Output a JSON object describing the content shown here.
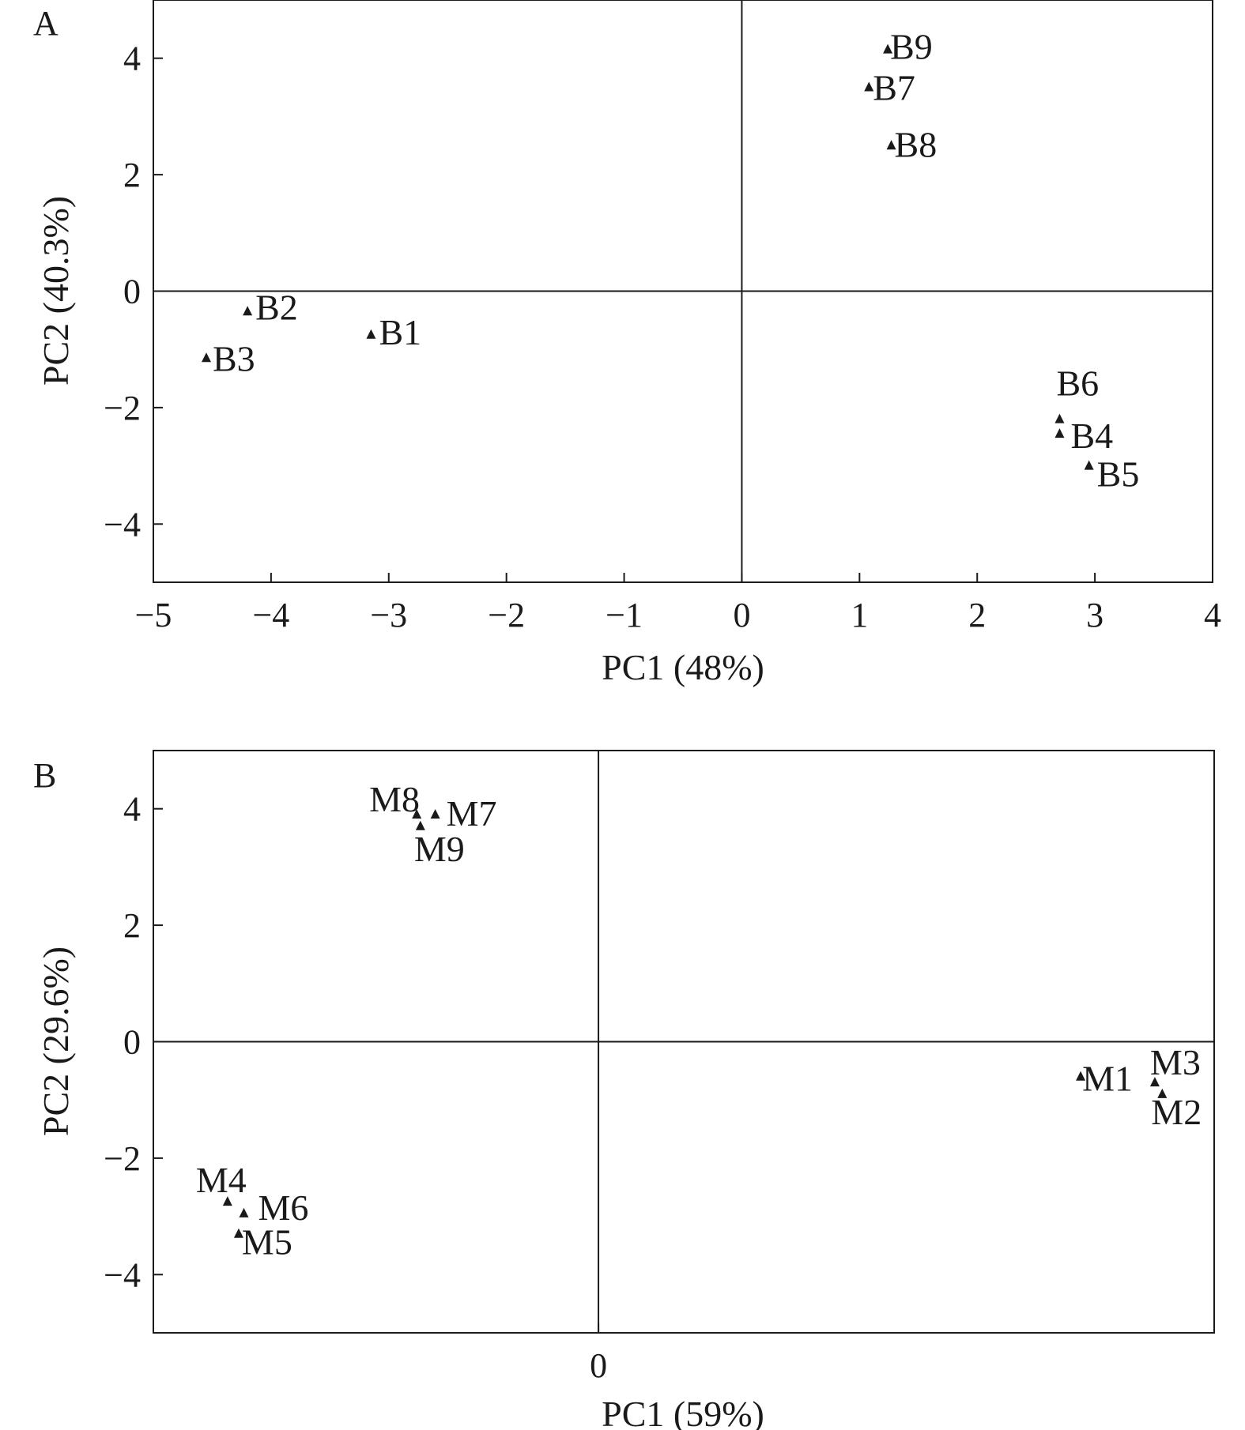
{
  "chart_data": [
    {
      "panel_label": "A",
      "type": "scatter",
      "xlabel": "PC1 (48%)",
      "ylabel": "PC2 (40.3%)",
      "xlim": [
        -5,
        4
      ],
      "ylim": [
        -5,
        5
      ],
      "xticks": [
        "−5",
        "−4",
        "−3",
        "−2",
        "−1",
        "0",
        "1",
        "2",
        "3",
        "4"
      ],
      "yticks": [
        "4",
        "2",
        "0",
        "−2",
        "−4"
      ],
      "marker": "triangle",
      "points": [
        {
          "label": "B1",
          "x": -3.15,
          "y": -0.75
        },
        {
          "label": "B2",
          "x": -4.2,
          "y": -0.35
        },
        {
          "label": "B3",
          "x": -4.55,
          "y": -1.15
        },
        {
          "label": "B4",
          "x": 2.7,
          "y": -2.45
        },
        {
          "label": "B5",
          "x": 2.95,
          "y": -3.0
        },
        {
          "label": "B6",
          "x": 2.7,
          "y": -2.2
        },
        {
          "label": "B7",
          "x": 1.08,
          "y": 3.5
        },
        {
          "label": "B8",
          "x": 1.27,
          "y": 2.5
        },
        {
          "label": "B9",
          "x": 1.24,
          "y": 4.15
        }
      ]
    },
    {
      "panel_label": "B",
      "type": "scatter",
      "xlabel": "PC1 (59%)",
      "ylabel": "PC2 (29.6%)",
      "xlim": [
        -6,
        8.3
      ],
      "ylim": [
        -5,
        5
      ],
      "xticks": [
        "0"
      ],
      "yticks": [
        "4",
        "2",
        "0",
        "−2",
        "−4"
      ],
      "marker": "triangle",
      "points": [
        {
          "label": "M1",
          "x": 6.5,
          "y": -0.6
        },
        {
          "label": "M2",
          "x": 7.6,
          "y": -0.9
        },
        {
          "label": "M3",
          "x": 7.5,
          "y": -0.7
        },
        {
          "label": "M4",
          "x": -5.0,
          "y": -2.75
        },
        {
          "label": "M5",
          "x": -4.85,
          "y": -3.3
        },
        {
          "label": "M6",
          "x": -4.78,
          "y": -2.95
        },
        {
          "label": "M7",
          "x": -2.2,
          "y": 3.9
        },
        {
          "label": "M8",
          "x": -2.45,
          "y": 3.9
        },
        {
          "label": "M9",
          "x": -2.4,
          "y": 3.7
        }
      ]
    }
  ]
}
